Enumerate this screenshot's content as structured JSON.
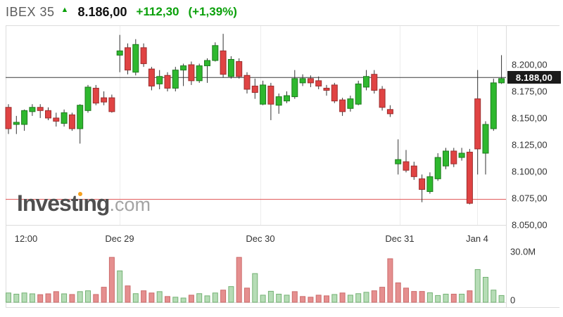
{
  "header": {
    "symbol": "IBEX 35",
    "arrow": "▲",
    "price": "8.186,00",
    "change": "+112,30",
    "change_pct": "(+1,39%)"
  },
  "watermark": {
    "brand": "Investing",
    "suffix": ".com"
  },
  "axis": {
    "price_tag": "8.188,00",
    "volume_top_label": "30.0M",
    "volume_zero_label": "0"
  },
  "colors": {
    "up_fill": "#2eb82e",
    "up_stroke": "#1d7a1d",
    "down_fill": "#e04343",
    "down_stroke": "#9c2d2d",
    "wick": "#333333",
    "vol_up_fill": "#b6dcb6",
    "vol_up_stroke": "#74b274",
    "vol_down_fill": "#e58f8f",
    "vol_down_stroke": "#cc6b6b",
    "price_line": "#3a3a3a",
    "prev_close_line": "#e05252",
    "header_green": "#0aa00a",
    "tag_bg": "#1b1b1b",
    "border": "#dcdcdc",
    "grid": "#ededed",
    "axis_text": "#333333"
  },
  "chart_data": {
    "type": "candlestick",
    "title": "IBEX 35 intraday (5-min) with volume",
    "symbol": "IBEX 35",
    "last_price": 8186.0,
    "change": 112.3,
    "change_pct": 1.39,
    "current_tick_price": 8188.0,
    "previous_close": 8073.7,
    "ylim": [
      8049.7,
      8237.0
    ],
    "volume_ylim_millions": [
      0,
      30
    ],
    "legend_position": "none",
    "grid": "vertical-faint",
    "y_ticks": [
      {
        "label": "8.200,00",
        "value": 8200
      },
      {
        "label": "8.175,00",
        "value": 8175
      },
      {
        "label": "8.150,00",
        "value": 8150
      },
      {
        "label": "8.125,00",
        "value": 8125
      },
      {
        "label": "8.100,00",
        "value": 8100
      },
      {
        "label": "8.075,00",
        "value": 8075
      },
      {
        "label": "8.050,00",
        "value": 8050
      }
    ],
    "x_ticks": [
      {
        "label": "12:00",
        "x": 37
      },
      {
        "label": "Dec 29",
        "x": 170
      },
      {
        "label": "Dec 30",
        "x": 370
      },
      {
        "label": "Dec 31",
        "x": 568
      },
      {
        "label": "Jan 4",
        "x": 678
      }
    ],
    "candles_ohlc": [
      [
        8160,
        8163,
        8135,
        8140
      ],
      [
        8144,
        8152,
        8135,
        8146
      ],
      [
        8144,
        8158,
        8138,
        8157
      ],
      [
        8156,
        8163,
        8152,
        8160
      ],
      [
        8160,
        8163,
        8150,
        8157
      ],
      [
        8157,
        8160,
        8148,
        8150
      ],
      [
        8150,
        8155,
        8142,
        8147
      ],
      [
        8145,
        8158,
        8142,
        8155
      ],
      [
        8153,
        8155,
        8138,
        8140
      ],
      [
        8140,
        8163,
        8126,
        8162
      ],
      [
        8157,
        8181,
        8155,
        8179
      ],
      [
        8178,
        8181,
        8162,
        8164
      ],
      [
        8169,
        8175,
        8162,
        8165
      ],
      [
        8169,
        8172,
        8155,
        8156
      ],
      [
        8209,
        8228,
        8193,
        8213
      ],
      [
        8216,
        8220,
        8191,
        8195
      ],
      [
        8193,
        8224,
        8190,
        8219
      ],
      [
        8216,
        8220,
        8198,
        8201
      ],
      [
        8196,
        8198,
        8176,
        8180
      ],
      [
        8182,
        8195,
        8177,
        8189
      ],
      [
        8190,
        8193,
        8175,
        8178
      ],
      [
        8178,
        8198,
        8175,
        8195
      ],
      [
        8195,
        8201,
        8180,
        8199
      ],
      [
        8200,
        8203,
        8181,
        8185
      ],
      [
        8185,
        8201,
        8183,
        8199
      ],
      [
        8199,
        8206,
        8183,
        8204
      ],
      [
        8204,
        8221,
        8203,
        8218
      ],
      [
        8213,
        8229,
        8188,
        8191
      ],
      [
        8189,
        8208,
        8187,
        8205
      ],
      [
        8203,
        8206,
        8187,
        8189
      ],
      [
        8190,
        8193,
        8173,
        8177
      ],
      [
        8180,
        8187,
        8168,
        8174
      ],
      [
        8163,
        8185,
        8162,
        8181
      ],
      [
        8180,
        8183,
        8148,
        8163
      ],
      [
        8162,
        8173,
        8154,
        8170
      ],
      [
        8166,
        8175,
        8164,
        8171
      ],
      [
        8170,
        8195,
        8168,
        8187
      ],
      [
        8183,
        8191,
        8180,
        8187
      ],
      [
        8187,
        8190,
        8179,
        8183
      ],
      [
        8185,
        8189,
        8177,
        8180
      ],
      [
        8178,
        8181,
        8171,
        8176
      ],
      [
        8181,
        8183,
        8164,
        8166
      ],
      [
        8167,
        8169,
        8152,
        8156
      ],
      [
        8159,
        8171,
        8156,
        8168
      ],
      [
        8163,
        8185,
        8162,
        8182
      ],
      [
        8179,
        8195,
        8176,
        8189
      ],
      [
        8191,
        8195,
        8173,
        8176
      ],
      [
        8177,
        8180,
        8157,
        8160
      ],
      [
        8158,
        8162,
        8151,
        8154
      ],
      [
        8107,
        8130,
        8097,
        8111
      ],
      [
        8109,
        8120,
        8099,
        8101
      ],
      [
        8105,
        8109,
        8092,
        8095
      ],
      [
        8093,
        8097,
        8071,
        8083
      ],
      [
        8081,
        8099,
        8079,
        8095
      ],
      [
        8093,
        8117,
        8091,
        8113
      ],
      [
        8105,
        8122,
        8102,
        8119
      ],
      [
        8119,
        8122,
        8104,
        8107
      ],
      [
        8113,
        8122,
        8110,
        8117
      ],
      [
        8118,
        8121,
        8069,
        8070
      ],
      [
        8168,
        8195,
        8097,
        8121
      ],
      [
        8117,
        8147,
        8097,
        8144
      ],
      [
        8140,
        8187,
        8138,
        8183
      ],
      [
        8183,
        8209,
        8182,
        8187
      ]
    ],
    "volumes_millions": [
      5.5,
      4.8,
      5.5,
      5.0,
      4.5,
      5.0,
      6.3,
      5.0,
      4.6,
      6.3,
      6.8,
      4.6,
      8.9,
      26.6,
      18.6,
      9.7,
      5.1,
      6.8,
      5.5,
      6.3,
      3.4,
      3.0,
      2.5,
      4.2,
      5.1,
      3.8,
      5.5,
      7.2,
      9.3,
      26.6,
      8.4,
      17.0,
      4.2,
      6.5,
      4.8,
      4.2,
      6.3,
      3.4,
      3.0,
      4.2,
      3.8,
      4.6,
      5.5,
      4.2,
      5.1,
      5.9,
      6.8,
      8.9,
      25.8,
      11.5,
      8.4,
      6.4,
      6.4,
      5.6,
      4.0,
      4.8,
      4.8,
      4.8,
      6.8,
      19.4,
      14.8,
      7.2,
      4.0
    ],
    "volume_directions": [
      "up",
      "up",
      "up",
      "up",
      "down",
      "down",
      "down",
      "up",
      "down",
      "up",
      "up",
      "down",
      "down",
      "down",
      "up",
      "down",
      "up",
      "down",
      "down",
      "up",
      "down",
      "up",
      "up",
      "down",
      "up",
      "up",
      "up",
      "down",
      "up",
      "down",
      "down",
      "up",
      "up",
      "up",
      "up",
      "up",
      "down",
      "down",
      "down",
      "down",
      "down",
      "up",
      "down",
      "up",
      "up",
      "up",
      "down",
      "down",
      "down",
      "down",
      "down",
      "down",
      "down",
      "up",
      "up",
      "up",
      "down",
      "up",
      "down",
      "up",
      "up",
      "up",
      "up"
    ]
  }
}
